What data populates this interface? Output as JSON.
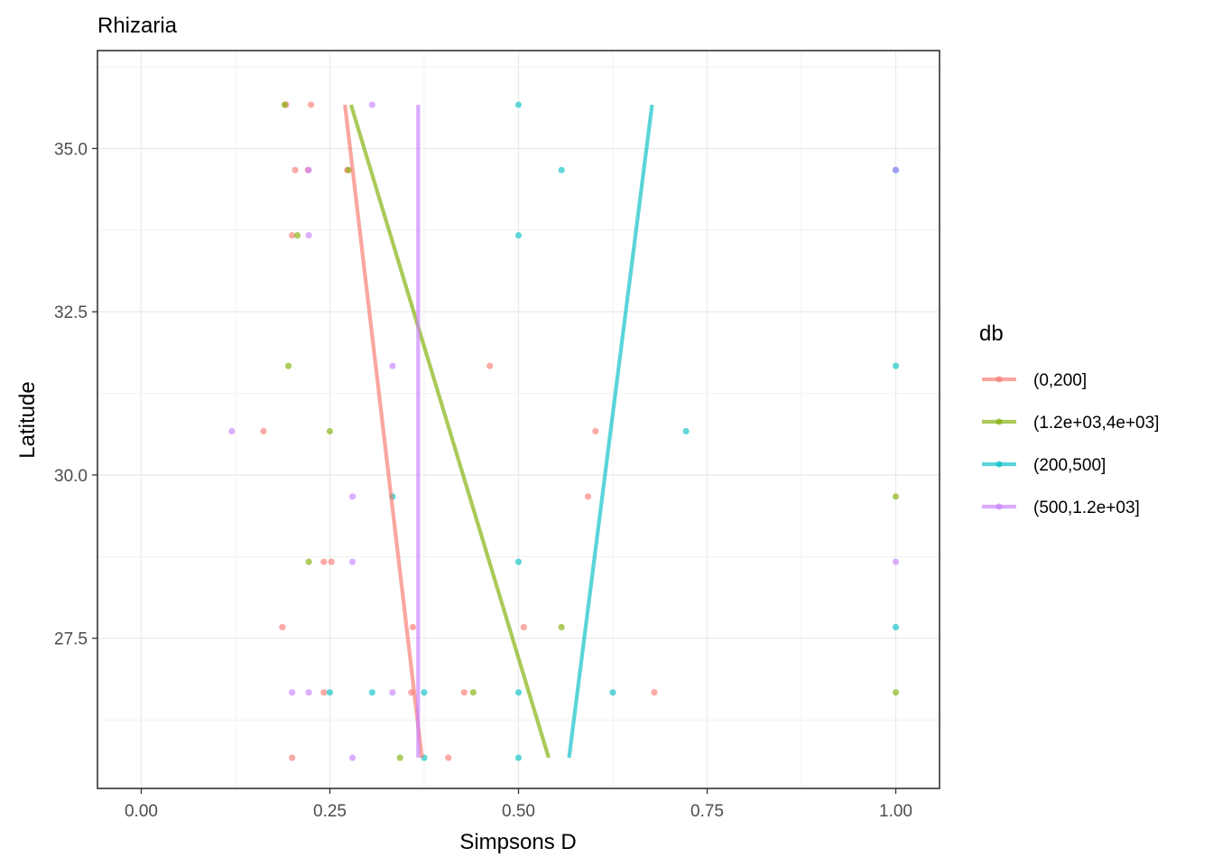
{
  "chart_data": {
    "type": "scatter",
    "title": "Rhizaria",
    "xlabel": "Simpsons D",
    "ylabel": "Latitude",
    "xlim": [
      -0.058,
      1.058
    ],
    "ylim": [
      25.2,
      36.5
    ],
    "x_ticks": [
      0.0,
      0.25,
      0.5,
      0.75,
      1.0
    ],
    "x_tick_labels": [
      "0.00",
      "0.25",
      "0.50",
      "0.75",
      "1.00"
    ],
    "y_ticks": [
      27.5,
      30.0,
      32.5,
      35.0
    ],
    "y_tick_labels": [
      "27.5",
      "30.0",
      "32.5",
      "35.0"
    ],
    "grid": true,
    "legend": {
      "title": "db",
      "position": "right"
    },
    "series": [
      {
        "name": "(0,200]",
        "color": "#F8766D",
        "points": [
          [
            0.192,
            35.67
          ],
          [
            0.225,
            35.67
          ],
          [
            0.204,
            34.67
          ],
          [
            0.221,
            34.67
          ],
          [
            0.273,
            34.67
          ],
          [
            0.2,
            33.67
          ],
          [
            0.462,
            31.67
          ],
          [
            0.162,
            30.67
          ],
          [
            0.602,
            30.67
          ],
          [
            0.592,
            29.67
          ],
          [
            0.242,
            28.67
          ],
          [
            0.252,
            28.67
          ],
          [
            0.187,
            27.67
          ],
          [
            0.36,
            27.67
          ],
          [
            0.507,
            27.67
          ],
          [
            0.242,
            26.67
          ],
          [
            0.358,
            26.67
          ],
          [
            0.428,
            26.67
          ],
          [
            0.68,
            26.67
          ],
          [
            0.2,
            25.67
          ],
          [
            0.407,
            25.67
          ]
        ],
        "trend": [
          [
            0.27,
            35.67
          ],
          [
            0.372,
            25.67
          ]
        ]
      },
      {
        "name": "(1.2e+03,4e+03]",
        "color": "#7CAE00",
        "points": [
          [
            0.19,
            35.67
          ],
          [
            0.275,
            34.67
          ],
          [
            0.207,
            33.67
          ],
          [
            0.195,
            31.67
          ],
          [
            0.25,
            30.67
          ],
          [
            1.0,
            29.67
          ],
          [
            0.222,
            28.67
          ],
          [
            0.557,
            27.67
          ],
          [
            0.44,
            26.67
          ],
          [
            1.0,
            26.67
          ],
          [
            0.343,
            25.67
          ]
        ],
        "trend": [
          [
            0.278,
            35.67
          ],
          [
            0.54,
            25.67
          ]
        ]
      },
      {
        "name": "(200,500]",
        "color": "#00BFC4",
        "points": [
          [
            0.5,
            35.67
          ],
          [
            0.557,
            34.67
          ],
          [
            1.0,
            34.67
          ],
          [
            0.5,
            33.67
          ],
          [
            1.0,
            31.67
          ],
          [
            0.722,
            30.67
          ],
          [
            0.333,
            29.67
          ],
          [
            0.5,
            28.67
          ],
          [
            1.0,
            27.67
          ],
          [
            0.25,
            26.67
          ],
          [
            0.306,
            26.67
          ],
          [
            0.375,
            26.67
          ],
          [
            0.5,
            26.67
          ],
          [
            0.625,
            26.67
          ],
          [
            0.375,
            25.67
          ],
          [
            0.5,
            25.67
          ]
        ],
        "trend": [
          [
            0.677,
            35.67
          ],
          [
            0.567,
            25.67
          ]
        ]
      },
      {
        "name": "(500,1.2e+03]",
        "color": "#C77CFF",
        "points": [
          [
            0.306,
            35.67
          ],
          [
            0.222,
            34.67
          ],
          [
            1.0,
            34.67
          ],
          [
            0.222,
            33.67
          ],
          [
            0.333,
            31.67
          ],
          [
            0.12,
            30.67
          ],
          [
            0.28,
            29.67
          ],
          [
            0.28,
            28.67
          ],
          [
            1.0,
            28.67
          ],
          [
            0.2,
            26.67
          ],
          [
            0.222,
            26.67
          ],
          [
            0.333,
            26.67
          ],
          [
            0.28,
            25.67
          ]
        ],
        "trend": [
          [
            0.367,
            35.67
          ],
          [
            0.367,
            25.67
          ]
        ]
      }
    ]
  }
}
